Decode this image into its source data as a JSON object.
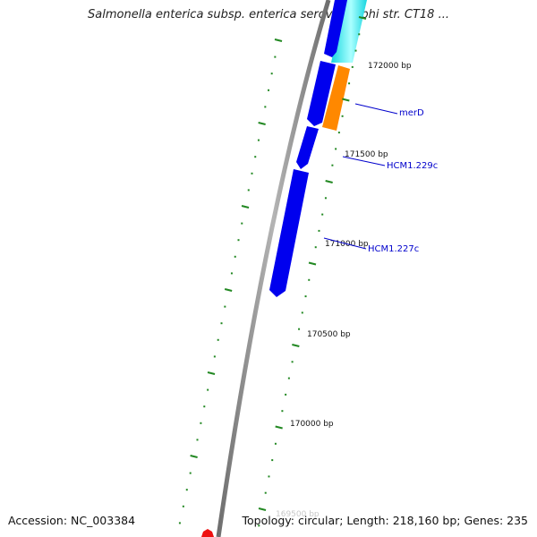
{
  "title": "Salmonella enterica subsp. enterica serovar Typhi str. CT18 ...",
  "accession": "Accession: NC_003384",
  "summary": "Topology: circular; Length: 218,160 bp; Genes: 235",
  "colors": {
    "backbone": "#8c8c8c",
    "gene_forward": "#0000ee",
    "gene_cyan": "#22e6ee",
    "gene_orange": "#ff8800",
    "tick": "#228822",
    "gene_label": "#0000cc",
    "marker": "#ee1111"
  },
  "ticks": [
    {
      "label": "172000 bp"
    },
    {
      "label": "171500 bp"
    },
    {
      "label": "171000 bp"
    },
    {
      "label": "170500 bp"
    },
    {
      "label": "170000 bp"
    },
    {
      "label": "169500 bp"
    }
  ],
  "gene_labels": [
    {
      "name": "merD"
    },
    {
      "name": "HCM1.229c"
    },
    {
      "name": "HCM1.227c"
    }
  ]
}
